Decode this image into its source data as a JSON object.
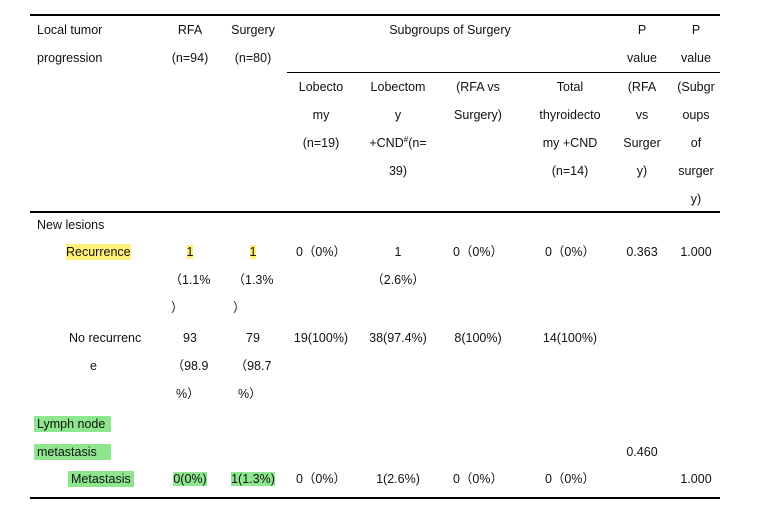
{
  "header": {
    "col1": [
      "Local tumor",
      "progression"
    ],
    "rfa": [
      "RFA",
      "(n=94)"
    ],
    "surgery": [
      "Surgery",
      "(n=80)"
    ],
    "subgroups_title": "Subgroups of Surgery",
    "p1": [
      "P",
      "value",
      "(RFA",
      "vs",
      "Surger",
      "y)"
    ],
    "p2": [
      "P",
      "value",
      "(Subgr",
      "oups",
      "of",
      "surger",
      "y)"
    ],
    "sub": {
      "lobectomy": [
        "Lobecto",
        "my",
        "(n=19)"
      ],
      "lobectomy_cnd": [
        "Lobectom",
        "y",
        "+CND",
        "#",
        "(n=",
        "39)"
      ],
      "rfa_vs": [
        "(RFA vs",
        "Surgery)"
      ],
      "total": [
        "Total",
        "thyroidecto",
        "my +CND",
        "(n=14)"
      ]
    }
  },
  "rows": {
    "new_lesions": "New lesions",
    "recurrence": {
      "label": "Recurrence",
      "rfa": [
        "1",
        "（1.1%",
        "）"
      ],
      "surgery": [
        "1",
        "（1.3%",
        "）"
      ],
      "lobectomy": "0（0%）",
      "lobectomy_cnd": [
        "1",
        "（2.6%）"
      ],
      "rfa_vs": "0（0%）",
      "total": "0（0%）",
      "p1": "0.363",
      "p2": "1.000"
    },
    "no_recurrence": {
      "label": [
        "No recurrenc",
        "e"
      ],
      "rfa": [
        "93",
        "（98.9",
        "%）"
      ],
      "surgery": [
        "79",
        "（98.7",
        "%）"
      ],
      "lobectomy": "19(100%)",
      "lobectomy_cnd": "38(97.4%)",
      "rfa_vs": "8(100%)",
      "total": "14(100%)"
    },
    "lymph": {
      "label": [
        "Lymph node",
        "metastasis"
      ],
      "p1": "0.460"
    },
    "metastasis": {
      "label": "Metastasis",
      "rfa": "0(0%)",
      "surgery": "1(1.3%)",
      "lobectomy": "0（0%）",
      "lobectomy_cnd": "1(2.6%)",
      "rfa_vs": "0（0%）",
      "total": "0（0%）",
      "p2": "1.000"
    }
  }
}
